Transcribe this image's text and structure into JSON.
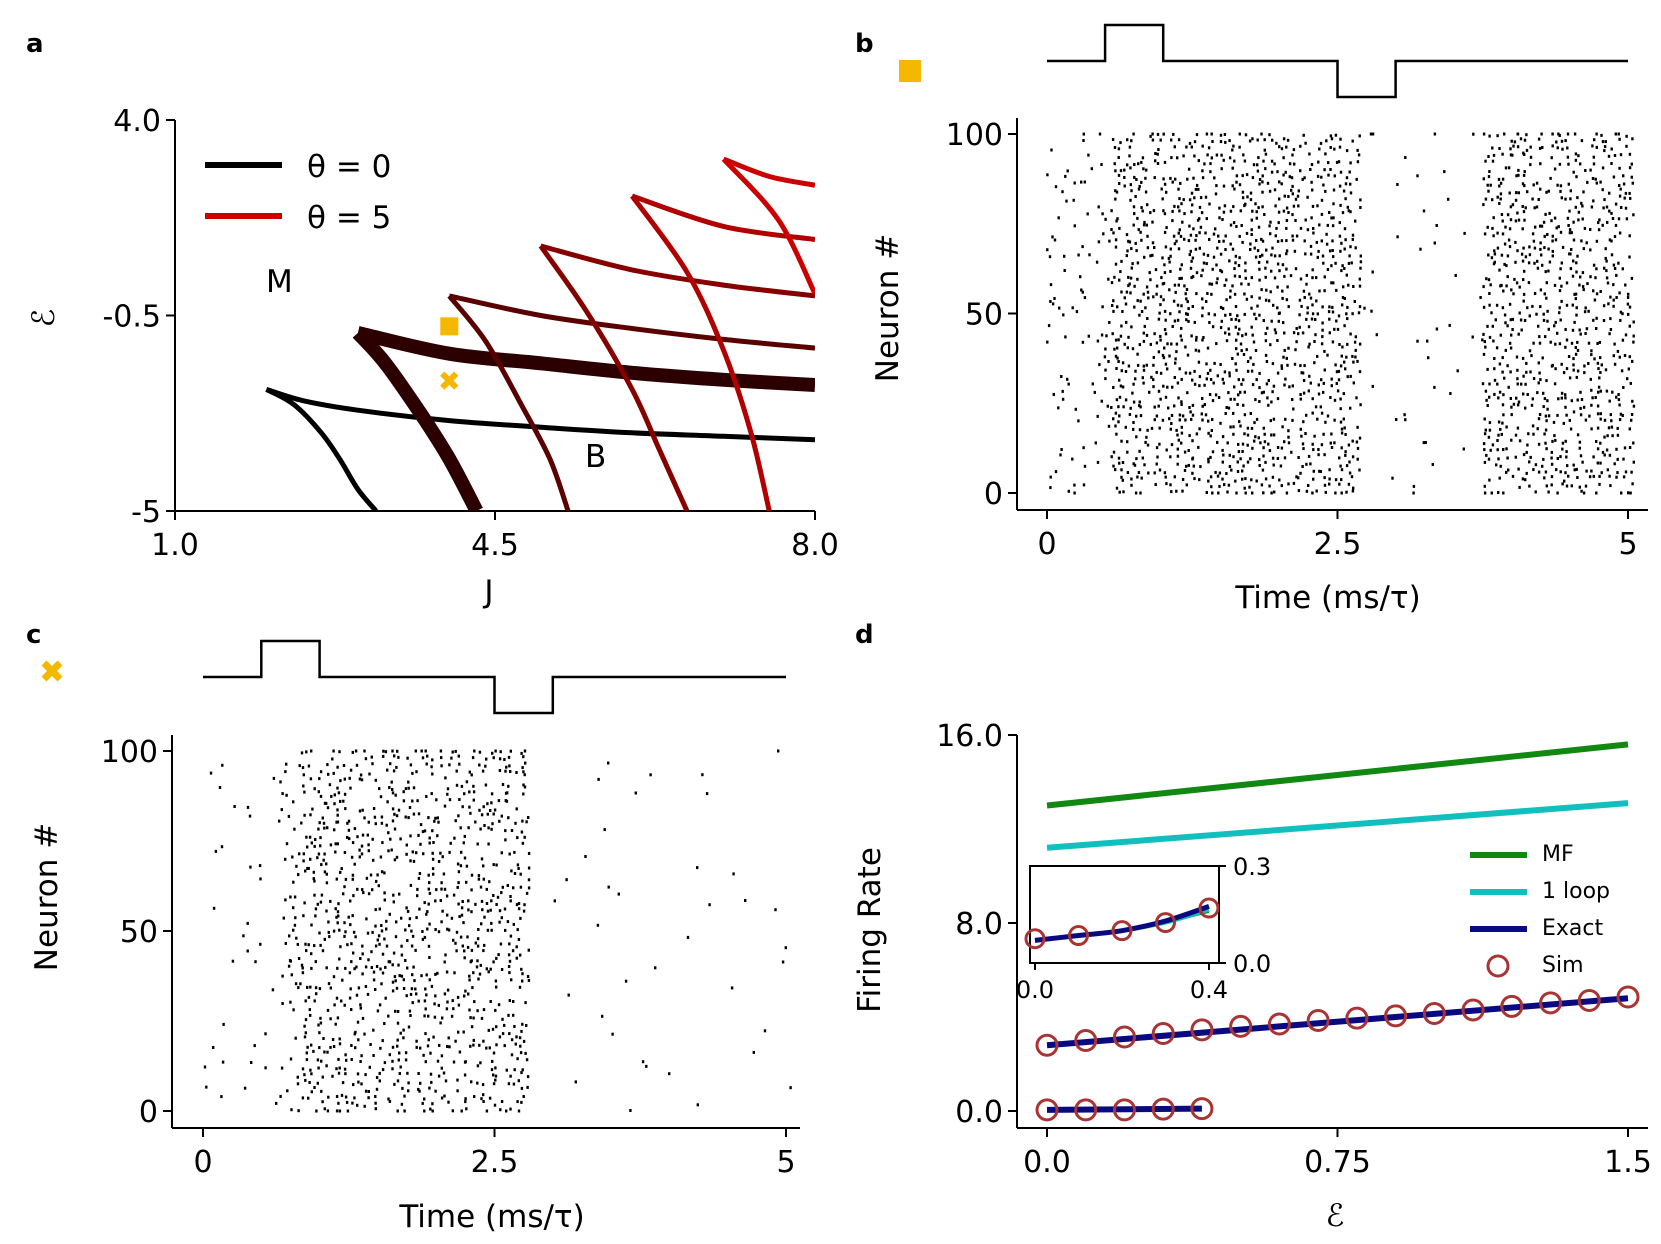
{
  "panels": {
    "a": {
      "letter": "a"
    },
    "b": {
      "letter": "b"
    },
    "c": {
      "letter": "c"
    },
    "d": {
      "letter": "d"
    }
  },
  "markers": {
    "square_color": "#f5b800",
    "cross_color": "#f5b800"
  },
  "chart_data": [
    {
      "panel": "a",
      "type": "line",
      "title": "",
      "xlabel": "J",
      "ylabel": "ℰ",
      "xlim": [
        1.0,
        8.0
      ],
      "ylim": [
        -5,
        4.0
      ],
      "xticks": [
        1.0,
        4.5,
        8.0
      ],
      "xtick_labels": [
        "1.0",
        "4.5",
        "8.0"
      ],
      "yticks": [
        4.0,
        -0.5,
        -5
      ],
      "ytick_labels": [
        "4.0",
        "-0.5",
        "-5"
      ],
      "legend": [
        {
          "label": "θ = 0",
          "color": "#000000"
        },
        {
          "label": "θ = 5",
          "color": "#cc0000"
        }
      ],
      "region_labels": {
        "monostable": "M",
        "bistable": "B"
      },
      "theta_series": [
        {
          "theta": 0,
          "color": "#000000",
          "lower": [
            [
              2.0,
              -2.2
            ],
            [
              2.4,
              -2.46
            ],
            [
              3.0,
              -2.68
            ],
            [
              4.0,
              -2.92
            ],
            [
              5.0,
              -3.07
            ],
            [
              6.0,
              -3.2
            ],
            [
              7.0,
              -3.28
            ],
            [
              8.0,
              -3.36
            ]
          ],
          "upper": [
            [
              2.0,
              -2.2
            ],
            [
              2.3,
              -2.55
            ],
            [
              2.6,
              -3.2
            ],
            [
              2.8,
              -3.8
            ],
            [
              3.0,
              -4.5
            ],
            [
              3.2,
              -5.0
            ]
          ]
        },
        {
          "theta": 1,
          "color": "#2c0000",
          "lower": [
            [
              3.0,
              -0.9
            ],
            [
              4.0,
              -1.38
            ],
            [
              5.0,
              -1.6
            ],
            [
              6.0,
              -1.82
            ],
            [
              7.0,
              -1.98
            ],
            [
              8.0,
              -2.1
            ]
          ],
          "upper": [
            [
              3.0,
              -0.9
            ],
            [
              3.3,
              -1.6
            ],
            [
              3.7,
              -2.8
            ],
            [
              4.0,
              -3.8
            ],
            [
              4.3,
              -5.0
            ]
          ]
        },
        {
          "theta": 2,
          "color": "#5a0000",
          "lower": [
            [
              4.0,
              -0.05
            ],
            [
              5.0,
              -0.5
            ],
            [
              6.0,
              -0.8
            ],
            [
              7.0,
              -1.05
            ],
            [
              8.0,
              -1.25
            ]
          ],
          "upper": [
            [
              4.0,
              -0.05
            ],
            [
              4.4,
              -1.1
            ],
            [
              4.8,
              -2.6
            ],
            [
              5.1,
              -3.8
            ],
            [
              5.3,
              -5.0
            ]
          ]
        },
        {
          "theta": 3,
          "color": "#870000",
          "lower": [
            [
              5.0,
              1.1
            ],
            [
              6.0,
              0.55
            ],
            [
              7.0,
              0.2
            ],
            [
              8.0,
              -0.05
            ]
          ],
          "upper": [
            [
              5.0,
              1.1
            ],
            [
              5.5,
              -0.4
            ],
            [
              6.0,
              -2.2
            ],
            [
              6.3,
              -3.6
            ],
            [
              6.6,
              -5.0
            ]
          ]
        },
        {
          "theta": 4,
          "color": "#b00000",
          "lower": [
            [
              6.0,
              2.25
            ],
            [
              7.0,
              1.55
            ],
            [
              8.0,
              1.25
            ]
          ],
          "upper": [
            [
              6.0,
              2.25
            ],
            [
              6.6,
              0.5
            ],
            [
              7.0,
              -1.3
            ],
            [
              7.3,
              -3.2
            ],
            [
              7.5,
              -5.0
            ]
          ]
        },
        {
          "theta": 5,
          "color": "#cc0000",
          "lower": [
            [
              7.0,
              3.1
            ],
            [
              7.5,
              2.7
            ],
            [
              8.0,
              2.5
            ]
          ],
          "upper": [
            [
              7.0,
              3.1
            ],
            [
              7.6,
              1.7
            ],
            [
              8.0,
              0.0
            ]
          ]
        }
      ],
      "points": [
        {
          "marker": "square",
          "J": 4.0,
          "E": -0.75
        },
        {
          "marker": "cross",
          "J": 4.0,
          "E": -2.0
        }
      ]
    },
    {
      "panel": "b",
      "type": "scatter",
      "subtype": "raster",
      "xlabel": "Time (ms/τ)",
      "ylabel": "Neuron #",
      "xlim": [
        0,
        5
      ],
      "ylim": [
        0,
        100
      ],
      "xticks": [
        0,
        2.5,
        5
      ],
      "xtick_labels": [
        "0",
        "2.5",
        "5"
      ],
      "yticks": [
        0,
        50,
        100
      ],
      "ytick_labels": [
        "0",
        "50",
        "100"
      ],
      "stimulus": {
        "pulse_up": [
          0.5,
          1.0
        ],
        "pulse_down": [
          2.5,
          3.0
        ]
      },
      "rate_profile": [
        {
          "t0": 0.0,
          "t1": 0.5,
          "rate": 0.3
        },
        {
          "t0": 0.5,
          "t1": 2.65,
          "rate": 1.0
        },
        {
          "t0": 2.65,
          "t1": 3.7,
          "rate": 0.06
        },
        {
          "t0": 3.7,
          "t1": 5.0,
          "rate": 0.95
        }
      ],
      "seed": 11
    },
    {
      "panel": "c",
      "type": "scatter",
      "subtype": "raster",
      "xlabel": "Time (ms/τ)",
      "ylabel": "Neuron #",
      "xlim": [
        0,
        5
      ],
      "ylim": [
        0,
        100
      ],
      "xticks": [
        0,
        2.5,
        5
      ],
      "xtick_labels": [
        "0",
        "2.5",
        "5"
      ],
      "yticks": [
        0,
        50,
        100
      ],
      "ytick_labels": [
        "0",
        "50",
        "100"
      ],
      "stimulus": {
        "pulse_up": [
          0.5,
          1.0
        ],
        "pulse_down": [
          2.5,
          3.0
        ]
      },
      "rate_profile": [
        {
          "t0": 0.0,
          "t1": 0.65,
          "rate": 0.08
        },
        {
          "t0": 0.65,
          "t1": 0.85,
          "rate": 0.45
        },
        {
          "t0": 0.85,
          "t1": 2.75,
          "rate": 0.82
        },
        {
          "t0": 2.75,
          "t1": 5.0,
          "rate": 0.03
        }
      ],
      "seed": 29
    },
    {
      "panel": "d",
      "type": "line",
      "xlabel": "ℰ",
      "ylabel": "Firing Rate",
      "xlim": [
        0.0,
        1.5
      ],
      "ylim": [
        0.0,
        16.0
      ],
      "xticks": [
        0.0,
        0.75,
        1.5
      ],
      "xtick_labels": [
        "0.0",
        "0.75",
        "1.5"
      ],
      "yticks": [
        0.0,
        8.0,
        16.0
      ],
      "ytick_labels": [
        "0.0",
        "8.0",
        "16.0"
      ],
      "series": [
        {
          "name": "MF",
          "color": "#118811",
          "x": [
            0.0,
            1.5
          ],
          "y": [
            13.0,
            15.6
          ]
        },
        {
          "name": "1 loop",
          "color": "#11bfbf",
          "x": [
            0.0,
            1.5
          ],
          "y": [
            11.2,
            13.1
          ]
        },
        {
          "name": "Exact",
          "color": "#0a0a80",
          "x": [
            0.0,
            1.5
          ],
          "y": [
            2.8,
            4.8
          ],
          "x2": [
            0.0,
            0.4
          ],
          "y2": [
            0.05,
            0.1
          ]
        },
        {
          "name": "Sim",
          "color": "#aa3333",
          "marker": "circle",
          "x": [
            0.0,
            0.1,
            0.2,
            0.3,
            0.4,
            0.5,
            0.6,
            0.7,
            0.8,
            0.9,
            1.0,
            1.1,
            1.2,
            1.3,
            1.4,
            1.5
          ],
          "y": [
            2.8,
            3.0,
            3.15,
            3.3,
            3.45,
            3.6,
            3.7,
            3.85,
            3.95,
            4.05,
            4.15,
            4.3,
            4.45,
            4.6,
            4.7,
            4.85
          ],
          "x2": [
            0.0,
            0.1,
            0.2,
            0.3,
            0.4
          ],
          "y2": [
            0.05,
            0.05,
            0.05,
            0.08,
            0.1
          ]
        }
      ],
      "inset": {
        "xlim": [
          0.0,
          0.4
        ],
        "ylim": [
          0.0,
          0.3
        ],
        "xticks": [
          0.0,
          0.4
        ],
        "xtick_labels": [
          "0.0",
          "0.4"
        ],
        "yticks": [
          0.0,
          0.3
        ],
        "ytick_labels": [
          "0.0",
          "0.3"
        ],
        "exact": {
          "x": [
            0.0,
            0.1,
            0.2,
            0.3,
            0.4
          ],
          "y": [
            0.07,
            0.085,
            0.1,
            0.13,
            0.175
          ]
        },
        "oneloop": {
          "x": [
            0.0,
            0.1,
            0.2,
            0.3,
            0.4
          ],
          "y": [
            0.07,
            0.085,
            0.1,
            0.125,
            0.165
          ]
        },
        "mf": {
          "x": [
            0.3,
            0.4
          ],
          "y": [
            0.125,
            0.16
          ]
        },
        "sim": {
          "x": [
            0.0,
            0.1,
            0.2,
            0.3,
            0.4
          ],
          "y": [
            0.075,
            0.085,
            0.1,
            0.125,
            0.17
          ]
        }
      }
    }
  ]
}
